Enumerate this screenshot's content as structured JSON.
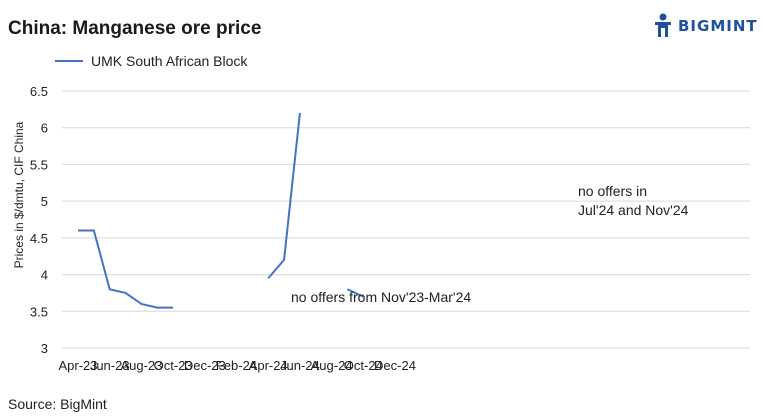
{
  "header": {
    "title": "China: Manganese ore price",
    "logo_text": "BIGMINT",
    "logo_icon": "bigmint-logo-icon"
  },
  "source": "Source:  BigMint",
  "colors": {
    "series": "#4472c4",
    "grid": "#d9d9d9",
    "brand": "#1f4f9e"
  },
  "chart_data": {
    "type": "line",
    "title": "China: Manganese ore price",
    "ylabel": "Prices in $/dmtu, CIF China",
    "xlabel": "",
    "ylim": [
      3,
      6.5
    ],
    "yticks": [
      "3",
      "3.5",
      "4",
      "4.5",
      "5",
      "5.5",
      "6",
      "6.5"
    ],
    "xticks": [
      "Apr-23",
      "Jun-23",
      "Aug-23",
      "Oct-23",
      "Dec-23",
      "Feb-24",
      "Apr-24",
      "Jun-24",
      "Aug-24",
      "Oct-24",
      "Dec-24"
    ],
    "grid": true,
    "legend_position": "top-left",
    "series": [
      {
        "name": "UMK South African Block",
        "points": [
          {
            "x": "Apr-23",
            "y": 4.6
          },
          {
            "x": "May-23",
            "y": 4.6
          },
          {
            "x": "Jun-23",
            "y": 3.8
          },
          {
            "x": "Jul-23",
            "y": 3.75
          },
          {
            "x": "Aug-23",
            "y": 3.6
          },
          {
            "x": "Sep-23",
            "y": 3.55
          },
          {
            "x": "Oct-23",
            "y": 3.55
          },
          {
            "x": "Nov-23",
            "y": null
          },
          {
            "x": "Dec-23",
            "y": null
          },
          {
            "x": "Jan-24",
            "y": null
          },
          {
            "x": "Feb-24",
            "y": null
          },
          {
            "x": "Mar-24",
            "y": null
          },
          {
            "x": "Apr-24",
            "y": 3.95
          },
          {
            "x": "May-24",
            "y": 4.2
          },
          {
            "x": "Jun-24",
            "y": 6.2
          },
          {
            "x": "Jul-24",
            "y": null
          },
          {
            "x": "Sep-24",
            "y": 3.8
          },
          {
            "x": "Oct-24",
            "y": 3.7
          },
          {
            "x": "Nov-24",
            "y": null
          }
        ]
      }
    ],
    "annotations": [
      {
        "text": "no offers from Nov'23-Mar'24"
      },
      {
        "text": "no offers in"
      },
      {
        "text": "Jul'24 and Nov'24"
      }
    ]
  }
}
